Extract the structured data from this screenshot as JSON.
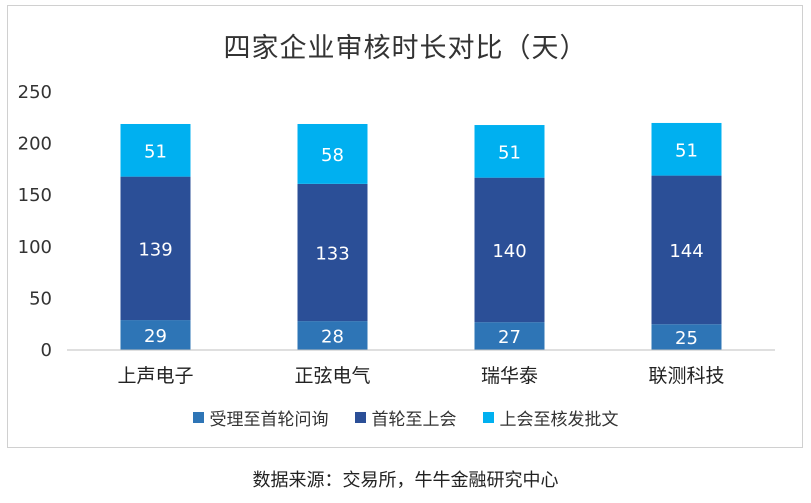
{
  "chart_data": {
    "type": "bar",
    "stacked": true,
    "title": "四家企业审核时长对比（天）",
    "categories": [
      "上声电子",
      "正弦电气",
      "瑞华泰",
      "联测科技"
    ],
    "series": [
      {
        "name": "受理至首轮问询",
        "color": "#2E75B6",
        "values": [
          29,
          28,
          27,
          25
        ]
      },
      {
        "name": "首轮至上会",
        "color": "#2B4F97",
        "values": [
          139,
          133,
          140,
          144
        ]
      },
      {
        "name": "上会至核发批文",
        "color": "#00B0F0",
        "values": [
          51,
          58,
          51,
          51
        ]
      }
    ],
    "yticks": [
      0,
      50,
      100,
      150,
      200,
      250
    ],
    "ylim": [
      0,
      250
    ],
    "grid": false,
    "legend_position": "bottom"
  },
  "source": "数据来源：交易所，牛牛金融研究中心"
}
